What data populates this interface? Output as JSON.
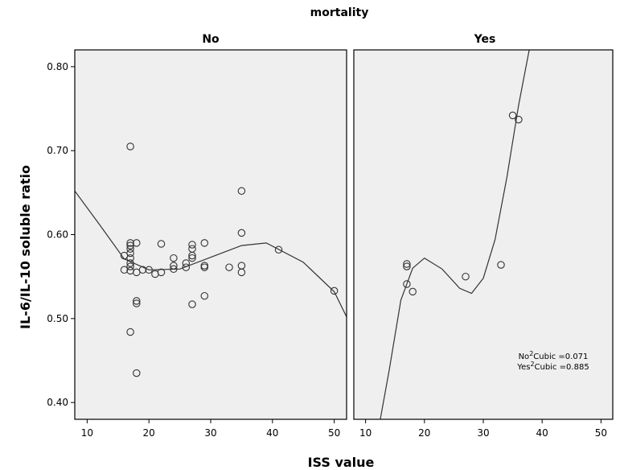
{
  "chart_data": {
    "type": "scatter",
    "title": "mortality",
    "xlabel": "ISS value",
    "ylabel": "IL-6/IL-10 soluble ratio",
    "y_ticks": [
      "0.40",
      "0.50",
      "0.60",
      "0.70",
      "0.80"
    ],
    "x_ticks": [
      "10",
      "20",
      "30",
      "40",
      "50"
    ],
    "ylim": [
      0.38,
      0.82
    ],
    "grid": false,
    "panels": [
      {
        "name": "No",
        "xlim": [
          8,
          52
        ],
        "fit": "cubic",
        "curve": [
          {
            "x": 8,
            "y": 0.652
          },
          {
            "x": 12,
            "y": 0.612
          },
          {
            "x": 16,
            "y": 0.571
          },
          {
            "x": 20,
            "y": 0.558
          },
          {
            "x": 25,
            "y": 0.559
          },
          {
            "x": 30,
            "y": 0.573
          },
          {
            "x": 35,
            "y": 0.587
          },
          {
            "x": 39,
            "y": 0.59
          },
          {
            "x": 45,
            "y": 0.567
          },
          {
            "x": 50,
            "y": 0.532
          },
          {
            "x": 52,
            "y": 0.502
          }
        ],
        "points": [
          {
            "x": 16,
            "y": 0.575
          },
          {
            "x": 16,
            "y": 0.558
          },
          {
            "x": 17,
            "y": 0.705
          },
          {
            "x": 17,
            "y": 0.59
          },
          {
            "x": 17,
            "y": 0.587
          },
          {
            "x": 17,
            "y": 0.583
          },
          {
            "x": 17,
            "y": 0.578
          },
          {
            "x": 17,
            "y": 0.572
          },
          {
            "x": 17,
            "y": 0.566
          },
          {
            "x": 17,
            "y": 0.562
          },
          {
            "x": 17,
            "y": 0.557
          },
          {
            "x": 17,
            "y": 0.484
          },
          {
            "x": 18,
            "y": 0.59
          },
          {
            "x": 18,
            "y": 0.555
          },
          {
            "x": 18,
            "y": 0.521
          },
          {
            "x": 18,
            "y": 0.518
          },
          {
            "x": 18,
            "y": 0.435
          },
          {
            "x": 19,
            "y": 0.558
          },
          {
            "x": 20,
            "y": 0.558
          },
          {
            "x": 21,
            "y": 0.553
          },
          {
            "x": 22,
            "y": 0.589
          },
          {
            "x": 22,
            "y": 0.555
          },
          {
            "x": 24,
            "y": 0.572
          },
          {
            "x": 24,
            "y": 0.563
          },
          {
            "x": 24,
            "y": 0.559
          },
          {
            "x": 26,
            "y": 0.566
          },
          {
            "x": 26,
            "y": 0.561
          },
          {
            "x": 27,
            "y": 0.588
          },
          {
            "x": 27,
            "y": 0.583
          },
          {
            "x": 27,
            "y": 0.575
          },
          {
            "x": 27,
            "y": 0.572
          },
          {
            "x": 27,
            "y": 0.517
          },
          {
            "x": 29,
            "y": 0.59
          },
          {
            "x": 29,
            "y": 0.563
          },
          {
            "x": 29,
            "y": 0.561
          },
          {
            "x": 29,
            "y": 0.527
          },
          {
            "x": 33,
            "y": 0.561
          },
          {
            "x": 35,
            "y": 0.652
          },
          {
            "x": 35,
            "y": 0.602
          },
          {
            "x": 35,
            "y": 0.563
          },
          {
            "x": 35,
            "y": 0.555
          },
          {
            "x": 41,
            "y": 0.582
          },
          {
            "x": 50,
            "y": 0.533
          }
        ]
      },
      {
        "name": "Yes",
        "xlim": [
          8,
          52
        ],
        "fit": "cubic",
        "curve": [
          {
            "x": 12.5,
            "y": 0.38
          },
          {
            "x": 14,
            "y": 0.438
          },
          {
            "x": 16,
            "y": 0.522
          },
          {
            "x": 18,
            "y": 0.56
          },
          {
            "x": 20,
            "y": 0.572
          },
          {
            "x": 23,
            "y": 0.559
          },
          {
            "x": 26,
            "y": 0.536
          },
          {
            "x": 28,
            "y": 0.53
          },
          {
            "x": 30,
            "y": 0.548
          },
          {
            "x": 32,
            "y": 0.594
          },
          {
            "x": 34,
            "y": 0.668
          },
          {
            "x": 36,
            "y": 0.754
          },
          {
            "x": 37.8,
            "y": 0.82
          }
        ],
        "points": [
          {
            "x": 17,
            "y": 0.565
          },
          {
            "x": 17,
            "y": 0.562
          },
          {
            "x": 17,
            "y": 0.541
          },
          {
            "x": 18,
            "y": 0.532
          },
          {
            "x": 27,
            "y": 0.55
          },
          {
            "x": 33,
            "y": 0.564
          },
          {
            "x": 35,
            "y": 0.742
          },
          {
            "x": 36,
            "y": 0.737
          }
        ]
      }
    ],
    "annotations": [
      {
        "prefix": "No",
        "sup": "2",
        "text": "Cubic =0.071"
      },
      {
        "prefix": "Yes",
        "sup": "2",
        "text": "Cubic =0.885"
      }
    ],
    "colors": {
      "panel_fill": "#efefef",
      "frame": "#000000",
      "marker": "#333333",
      "curve": "#333333"
    }
  }
}
